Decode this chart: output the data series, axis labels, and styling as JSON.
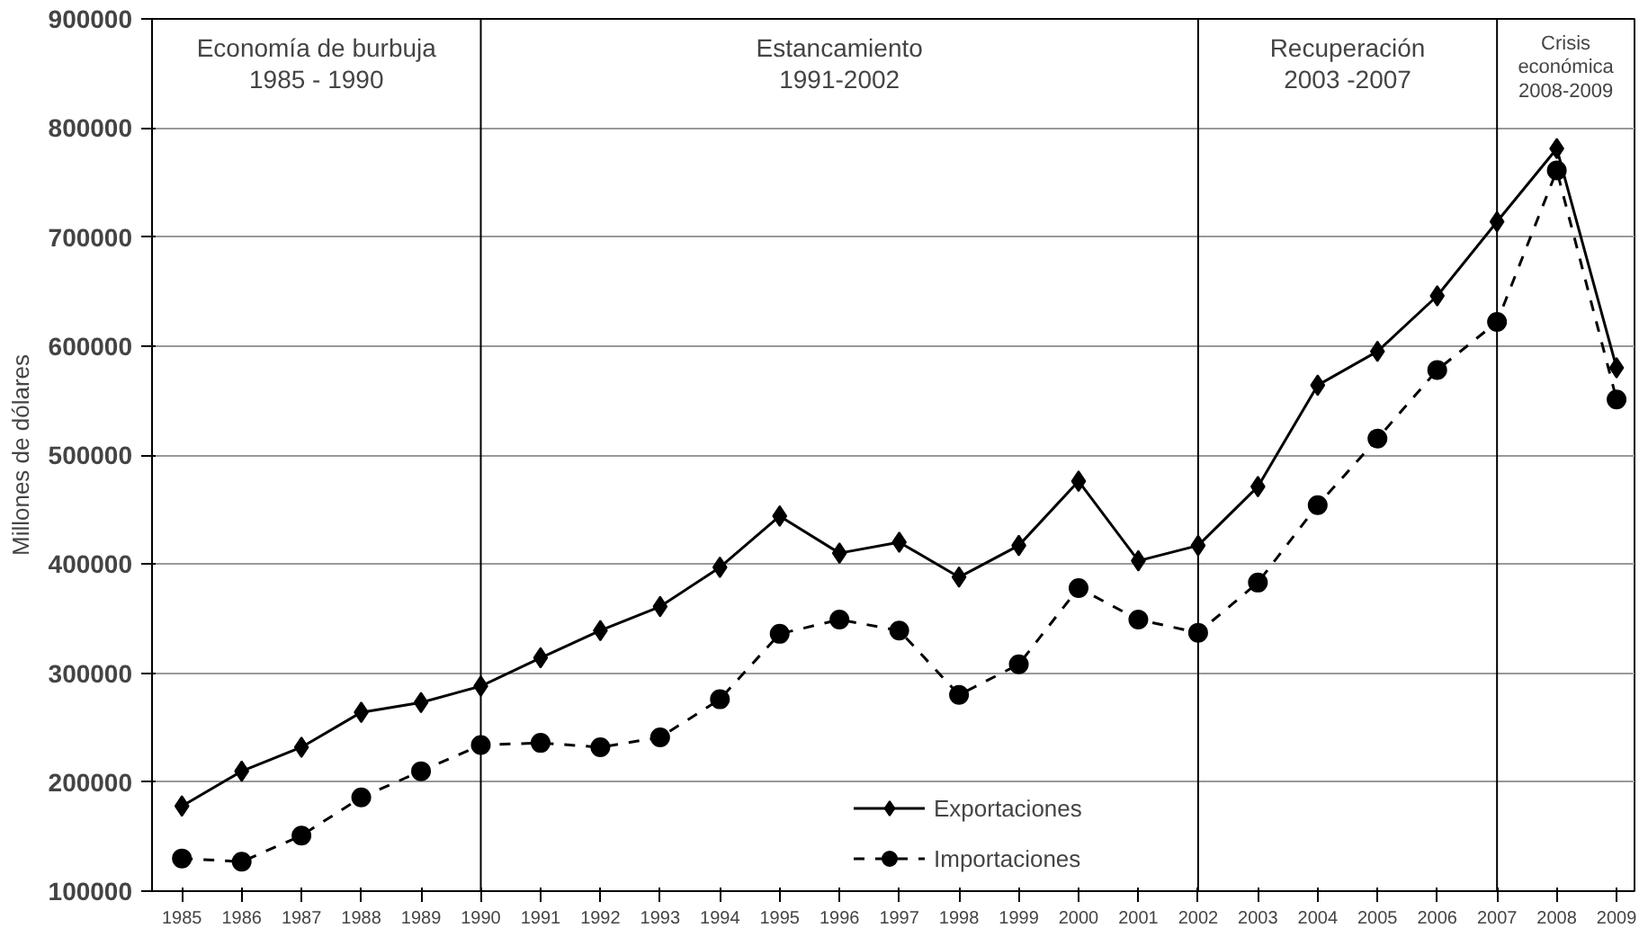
{
  "chart_data": {
    "type": "line",
    "ylabel": "Millones de dólares",
    "x": [
      1985,
      1986,
      1987,
      1988,
      1989,
      1990,
      1991,
      1992,
      1993,
      1994,
      1995,
      1996,
      1997,
      1998,
      1999,
      2000,
      2001,
      2002,
      2003,
      2004,
      2005,
      2006,
      2007,
      2008,
      2009
    ],
    "series": [
      {
        "name": "Exportaciones",
        "color": "#000000",
        "marker": "diamond",
        "line_style": "solid",
        "values": [
          178000,
          210000,
          232000,
          264000,
          273000,
          288000,
          314000,
          339000,
          361000,
          397000,
          444000,
          410000,
          420000,
          388000,
          417000,
          476000,
          403000,
          417000,
          471000,
          564000,
          595000,
          646000,
          714000,
          781000,
          580000
        ]
      },
      {
        "name": "Importaciones",
        "color": "#000000",
        "marker": "circle",
        "line_style": "dashed",
        "values": [
          130000,
          127000,
          151000,
          186000,
          210000,
          234000,
          236000,
          232000,
          241000,
          276000,
          336000,
          349000,
          339000,
          280000,
          308000,
          378000,
          349000,
          337000,
          383000,
          454000,
          515000,
          578000,
          622000,
          761000,
          551000
        ]
      }
    ],
    "ref_lines": [
      {
        "axis": "x",
        "value": 1990,
        "label": null,
        "color": "#000000"
      },
      {
        "axis": "x",
        "value": 2002,
        "label": null,
        "color": "#000000"
      },
      {
        "axis": "x",
        "value": 2007,
        "label": null,
        "color": "#000000"
      }
    ],
    "annotations": [
      "Economía de burbuja\n1985 - 1990",
      "Estancamiento\n1991-2002",
      "Recuperación\n2003 -2007",
      "Crisis\neconómica\n2008-2009"
    ],
    "xlim": [
      1984.5,
      2009.3
    ],
    "xticks": [
      1985,
      1986,
      1987,
      1988,
      1989,
      1990,
      1991,
      1992,
      1993,
      1994,
      1995,
      1996,
      1997,
      1998,
      1999,
      2000,
      2001,
      2002,
      2003,
      2004,
      2005,
      2006,
      2007,
      2008,
      2009
    ],
    "ylim": [
      100000,
      900000
    ],
    "yticks": [
      100000,
      200000,
      300000,
      400000,
      500000,
      600000,
      700000,
      800000,
      900000
    ],
    "grid": "y",
    "legend": "bottom"
  }
}
